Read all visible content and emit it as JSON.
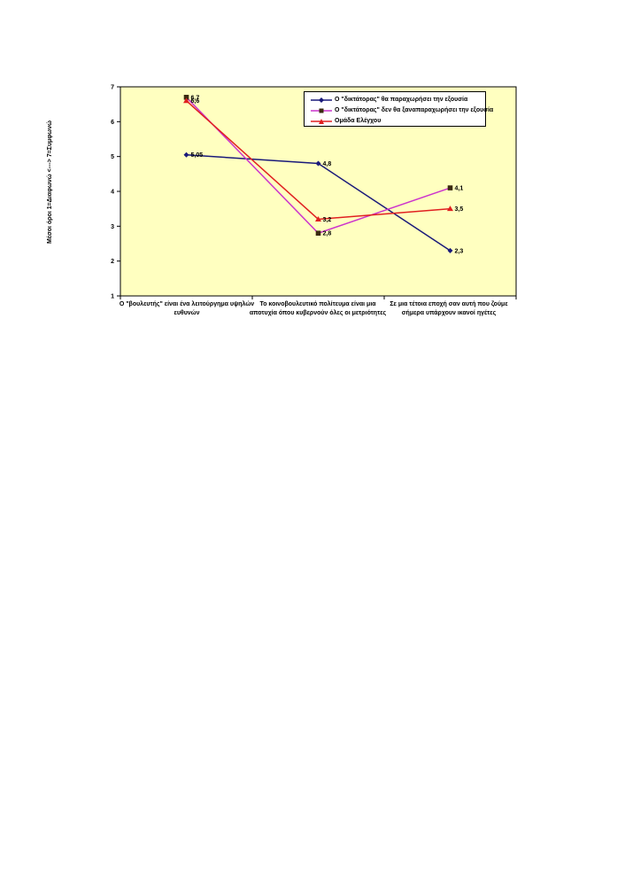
{
  "chart_data": {
    "type": "line",
    "ylabel": "Μέσοι όροι 1=Διαφωνώ <---> 7=Συμφωνώ",
    "ylim": [
      1,
      7
    ],
    "yticks": [
      "1",
      "2",
      "3",
      "4",
      "5",
      "6",
      "7"
    ],
    "categories": [
      "Ο \"βουλευτής\" είναι ένα λειτούργημα υψηλών ευθυνών",
      "Το κοινοβουλευτικό πολίτευμα είναι μια αποτυχία όπου κυβερνούν όλες οι μετριότητες",
      "Σε μια τέτοια εποχή σαν αυτή που ζούμε σήμερα υπάρχουν ικανοί ηγέτες"
    ],
    "series": [
      {
        "name": "Ο \"δικτάτορας\" θα παραχωρήσει την εξουσία",
        "values": [
          5.05,
          4.8,
          2.3
        ],
        "labels": [
          "5,05",
          "4,8",
          "2,3"
        ],
        "color": "#1a1a7a",
        "marker": "diamond"
      },
      {
        "name": "Ο \"δικτάτορας\" δεν θα ξαναπαραχωρήσει την εξουσία",
        "values": [
          6.7,
          2.8,
          4.1
        ],
        "labels": [
          "6,7",
          "2,8",
          "4,1"
        ],
        "color": "#cc33cc",
        "marker": "square"
      },
      {
        "name": "Ομάδα Ελέγχου",
        "values": [
          6.6,
          3.2,
          3.5
        ],
        "labels": [
          "6,6",
          "3,2",
          "3,5"
        ],
        "color": "#e02020",
        "marker": "triangle"
      }
    ],
    "grid": false,
    "legend_position": "top-right",
    "plot_background": "#ffffc0",
    "page_background": "#ffffff"
  }
}
